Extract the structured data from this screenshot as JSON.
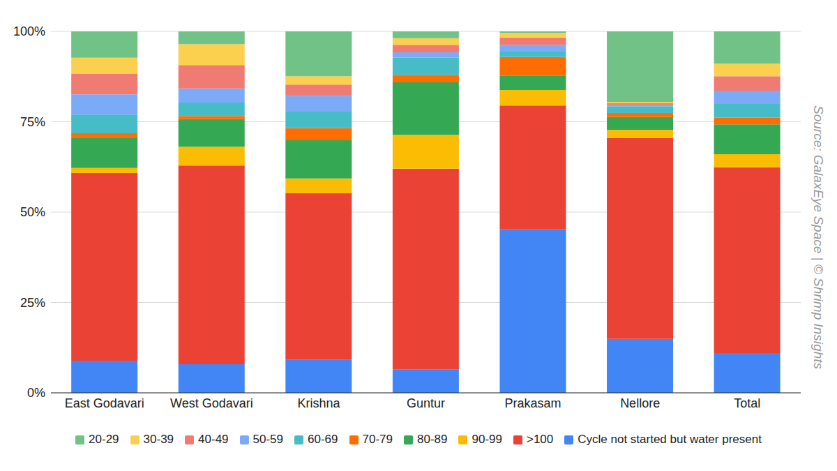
{
  "chart_data": {
    "type": "bar",
    "stacked": true,
    "grid": true,
    "legend": "bottom",
    "annotation": "Source: GalaxEye Space | © Shrimp Insights",
    "categories": [
      "East Godavari",
      "West Godavari",
      "Krishna",
      "Guntur",
      "Prakasam",
      "Nellore",
      "Total"
    ],
    "ylim": [
      0,
      100
    ],
    "yticks": [
      {
        "value": 0,
        "label": "0%"
      },
      {
        "value": 25,
        "label": "25%"
      },
      {
        "value": 50,
        "label": "50%"
      },
      {
        "value": 75,
        "label": "75%"
      },
      {
        "value": 100,
        "label": "100%"
      }
    ],
    "series": [
      {
        "name": "20-29",
        "color": "#71c287",
        "values": [
          7.3,
          3.5,
          12.4,
          1.9,
          0.4,
          19.5,
          8.9
        ]
      },
      {
        "name": "30-39",
        "color": "#fcd04f",
        "values": [
          4.5,
          5.8,
          2.3,
          1.8,
          1.3,
          0.4,
          3.5
        ]
      },
      {
        "name": "40-49",
        "color": "#f07b72",
        "values": [
          5.6,
          6.5,
          3.1,
          2.1,
          2.0,
          0.4,
          4.0
        ]
      },
      {
        "name": "50-59",
        "color": "#7baaf7",
        "values": [
          5.6,
          3.9,
          4.4,
          1.5,
          1.9,
          0.4,
          3.7
        ]
      },
      {
        "name": "60-69",
        "color": "#46bdc6",
        "values": [
          5.2,
          3.7,
          4.6,
          4.7,
          1.5,
          1.9,
          3.8
        ]
      },
      {
        "name": "70-79",
        "color": "#ff6d01",
        "values": [
          1.1,
          0.9,
          3.3,
          2.1,
          5.1,
          1.1,
          1.8
        ]
      },
      {
        "name": "80-89",
        "color": "#34a853",
        "values": [
          8.5,
          7.6,
          10.6,
          14.5,
          4.0,
          3.5,
          8.3
        ]
      },
      {
        "name": "90-99",
        "color": "#fbbc04",
        "values": [
          1.4,
          5.2,
          4.1,
          9.4,
          4.3,
          2.3,
          3.6
        ]
      },
      {
        "name": ">100",
        "color": "#ea4335",
        "values": [
          51.9,
          55.0,
          46.1,
          55.6,
          34.3,
          55.6,
          51.4
        ]
      },
      {
        "name": "Cycle not started but water present",
        "color": "#4285f4",
        "values": [
          8.9,
          7.9,
          9.1,
          6.4,
          45.2,
          14.9,
          11.0
        ]
      }
    ]
  }
}
